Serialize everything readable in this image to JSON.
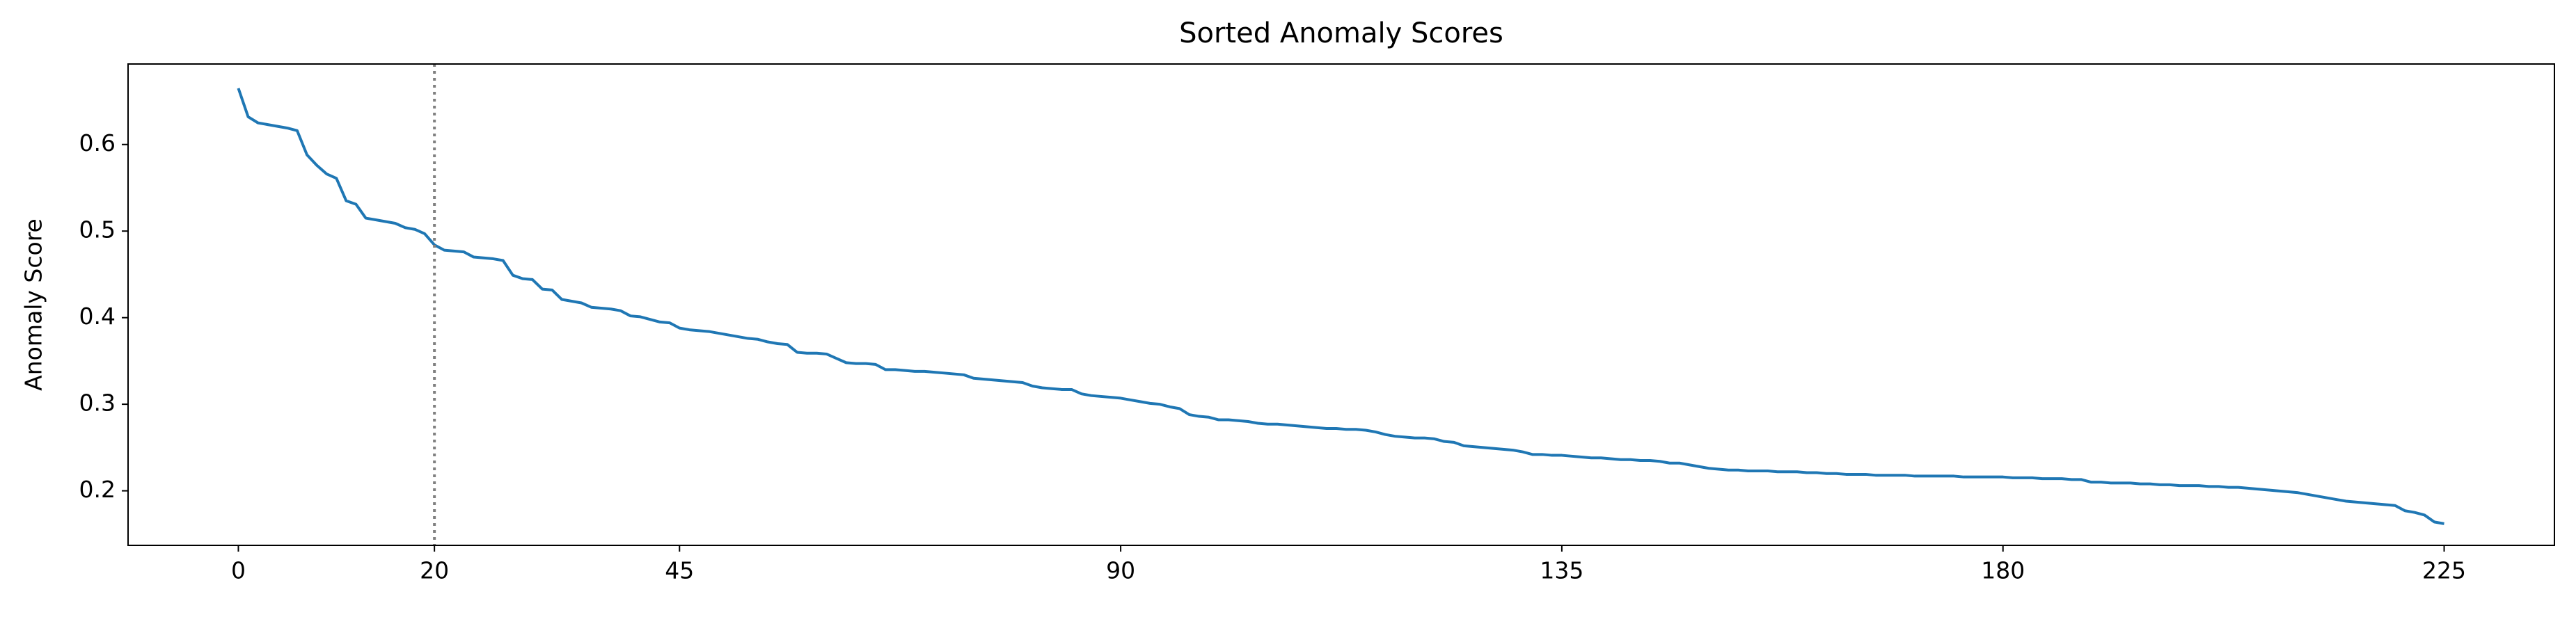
{
  "chart_data": {
    "type": "line",
    "title": "Sorted Anomaly Scores",
    "y_label": "Anomaly Score",
    "color": "#1f77b4",
    "values": [
      0.665,
      0.632,
      0.625,
      0.623,
      0.621,
      0.619,
      0.616,
      0.588,
      0.576,
      0.566,
      0.561,
      0.535,
      0.531,
      0.515,
      0.513,
      0.511,
      0.509,
      0.504,
      0.502,
      0.497,
      0.484,
      0.478,
      0.477,
      0.476,
      0.47,
      0.469,
      0.468,
      0.466,
      0.449,
      0.445,
      0.444,
      0.433,
      0.432,
      0.421,
      0.419,
      0.417,
      0.412,
      0.411,
      0.41,
      0.408,
      0.402,
      0.401,
      0.398,
      0.395,
      0.394,
      0.388,
      0.386,
      0.385,
      0.384,
      0.382,
      0.38,
      0.378,
      0.376,
      0.375,
      0.372,
      0.37,
      0.369,
      0.36,
      0.359,
      0.359,
      0.358,
      0.353,
      0.348,
      0.347,
      0.347,
      0.346,
      0.34,
      0.34,
      0.339,
      0.338,
      0.338,
      0.337,
      0.336,
      0.335,
      0.334,
      0.33,
      0.329,
      0.328,
      0.327,
      0.326,
      0.325,
      0.321,
      0.319,
      0.318,
      0.317,
      0.317,
      0.312,
      0.31,
      0.309,
      0.308,
      0.307,
      0.305,
      0.303,
      0.301,
      0.3,
      0.297,
      0.295,
      0.288,
      0.286,
      0.285,
      0.282,
      0.282,
      0.281,
      0.28,
      0.278,
      0.277,
      0.277,
      0.276,
      0.275,
      0.274,
      0.273,
      0.272,
      0.272,
      0.271,
      0.271,
      0.27,
      0.268,
      0.265,
      0.263,
      0.262,
      0.261,
      0.261,
      0.26,
      0.257,
      0.256,
      0.252,
      0.251,
      0.25,
      0.249,
      0.248,
      0.247,
      0.245,
      0.242,
      0.242,
      0.241,
      0.241,
      0.24,
      0.239,
      0.238,
      0.238,
      0.237,
      0.236,
      0.236,
      0.235,
      0.235,
      0.234,
      0.232,
      0.232,
      0.23,
      0.228,
      0.226,
      0.225,
      0.224,
      0.224,
      0.223,
      0.223,
      0.223,
      0.222,
      0.222,
      0.222,
      0.221,
      0.221,
      0.22,
      0.22,
      0.219,
      0.219,
      0.219,
      0.218,
      0.218,
      0.218,
      0.218,
      0.217,
      0.217,
      0.217,
      0.217,
      0.217,
      0.216,
      0.216,
      0.216,
      0.216,
      0.216,
      0.215,
      0.215,
      0.215,
      0.214,
      0.214,
      0.214,
      0.213,
      0.213,
      0.21,
      0.21,
      0.209,
      0.209,
      0.209,
      0.208,
      0.208,
      0.207,
      0.207,
      0.206,
      0.206,
      0.206,
      0.205,
      0.205,
      0.204,
      0.204,
      0.203,
      0.202,
      0.201,
      0.2,
      0.199,
      0.198,
      0.196,
      0.194,
      0.192,
      0.19,
      0.188,
      0.187,
      0.186,
      0.185,
      0.184,
      0.183,
      0.177,
      0.175,
      0.172,
      0.164,
      0.162
    ],
    "vline": 20,
    "xlim": [
      -11.25,
      236.25
    ],
    "xticks": [
      0,
      20,
      45,
      90,
      135,
      180,
      225
    ],
    "ylim": [
      0.137,
      0.693
    ],
    "yticks": [
      0.2,
      0.3,
      0.4,
      0.5,
      0.6
    ]
  }
}
